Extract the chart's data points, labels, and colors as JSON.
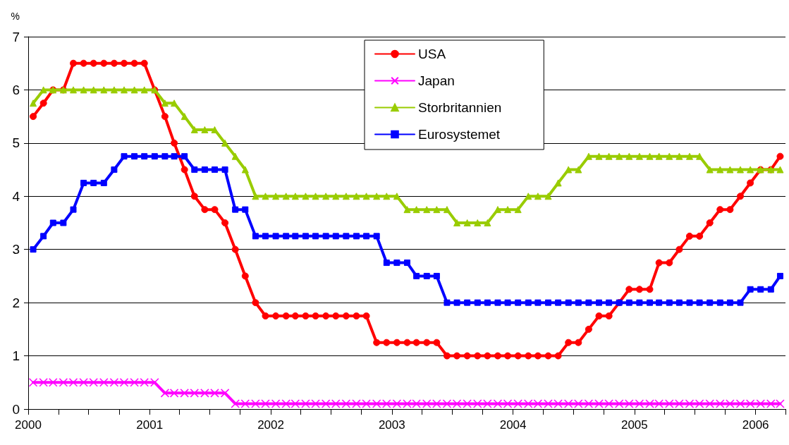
{
  "chart_data": {
    "type": "line",
    "ylabel": "%",
    "x": [
      "2000-01-16",
      "2000-02-16",
      "2000-03-16",
      "2000-04-16",
      "2000-05-16",
      "2000-06-16",
      "2000-07-16",
      "2000-08-16",
      "2000-09-16",
      "2000-10-16",
      "2000-11-16",
      "2000-12-16",
      "2001-01-16",
      "2001-02-16",
      "2001-03-16",
      "2001-04-16",
      "2001-05-16",
      "2001-06-16",
      "2001-07-16",
      "2001-08-16",
      "2001-09-16",
      "2001-10-16",
      "2001-11-16",
      "2001-12-16",
      "2002-01-16",
      "2002-02-16",
      "2002-03-16",
      "2002-04-16",
      "2002-05-16",
      "2002-06-16",
      "2002-07-16",
      "2002-08-16",
      "2002-09-16",
      "2002-10-16",
      "2002-11-16",
      "2002-12-16",
      "2003-01-16",
      "2003-02-16",
      "2003-03-16",
      "2003-04-16",
      "2003-05-16",
      "2003-06-16",
      "2003-07-16",
      "2003-08-16",
      "2003-09-16",
      "2003-10-16",
      "2003-11-16",
      "2003-12-16",
      "2004-01-16",
      "2004-02-16",
      "2004-03-16",
      "2004-04-16",
      "2004-05-16",
      "2004-06-16",
      "2004-07-16",
      "2004-08-16",
      "2004-09-16",
      "2004-10-16",
      "2004-11-16",
      "2004-12-16",
      "2005-01-16",
      "2005-02-16",
      "2005-03-16",
      "2005-04-16",
      "2005-05-16",
      "2005-06-16",
      "2005-07-16",
      "2005-08-16",
      "2005-09-16",
      "2005-10-16",
      "2005-11-16",
      "2005-12-16",
      "2006-01-16",
      "2006-02-16",
      "2006-03-16"
    ],
    "series": [
      {
        "name": "USA",
        "color": "#ff0000",
        "marker": "circle",
        "values": [
          5.5,
          5.75,
          6,
          6,
          6.5,
          6.5,
          6.5,
          6.5,
          6.5,
          6.5,
          6.5,
          6.5,
          6,
          5.5,
          5,
          4.5,
          4,
          3.75,
          3.75,
          3.5,
          3,
          2.5,
          2,
          1.75,
          1.75,
          1.75,
          1.75,
          1.75,
          1.75,
          1.75,
          1.75,
          1.75,
          1.75,
          1.75,
          1.25,
          1.25,
          1.25,
          1.25,
          1.25,
          1.25,
          1.25,
          1,
          1,
          1,
          1,
          1,
          1,
          1,
          1,
          1,
          1,
          1,
          1,
          1.25,
          1.25,
          1.5,
          1.75,
          1.75,
          2,
          2.25,
          2.25,
          2.25,
          2.75,
          2.75,
          3,
          3.25,
          3.25,
          3.5,
          3.75,
          3.75,
          4,
          4.25,
          4.5,
          4.5,
          4.75
        ]
      },
      {
        "name": "Japan",
        "color": "#ff00ff",
        "marker": "cross",
        "values": [
          0.5,
          0.5,
          0.5,
          0.5,
          0.5,
          0.5,
          0.5,
          0.5,
          0.5,
          0.5,
          0.5,
          0.5,
          0.5,
          0.3,
          0.3,
          0.3,
          0.3,
          0.3,
          0.3,
          0.3,
          0.1,
          0.1,
          0.1,
          0.1,
          0.1,
          0.1,
          0.1,
          0.1,
          0.1,
          0.1,
          0.1,
          0.1,
          0.1,
          0.1,
          0.1,
          0.1,
          0.1,
          0.1,
          0.1,
          0.1,
          0.1,
          0.1,
          0.1,
          0.1,
          0.1,
          0.1,
          0.1,
          0.1,
          0.1,
          0.1,
          0.1,
          0.1,
          0.1,
          0.1,
          0.1,
          0.1,
          0.1,
          0.1,
          0.1,
          0.1,
          0.1,
          0.1,
          0.1,
          0.1,
          0.1,
          0.1,
          0.1,
          0.1,
          0.1,
          0.1,
          0.1,
          0.1,
          0.1,
          0.1,
          0.1
        ]
      },
      {
        "name": "Storbritannien",
        "color": "#99cc00",
        "marker": "triangle",
        "values": [
          5.75,
          6,
          6,
          6,
          6,
          6,
          6,
          6,
          6,
          6,
          6,
          6,
          6,
          5.75,
          5.75,
          5.5,
          5.25,
          5.25,
          5.25,
          5,
          4.75,
          4.5,
          4,
          4,
          4,
          4,
          4,
          4,
          4,
          4,
          4,
          4,
          4,
          4,
          4,
          4,
          4,
          3.75,
          3.75,
          3.75,
          3.75,
          3.75,
          3.5,
          3.5,
          3.5,
          3.5,
          3.75,
          3.75,
          3.75,
          4,
          4,
          4,
          4.25,
          4.5,
          4.5,
          4.75,
          4.75,
          4.75,
          4.75,
          4.75,
          4.75,
          4.75,
          4.75,
          4.75,
          4.75,
          4.75,
          4.75,
          4.5,
          4.5,
          4.5,
          4.5,
          4.5,
          4.5,
          4.5,
          4.5
        ]
      },
      {
        "name": "Eurosystemet",
        "color": "#0000ff",
        "marker": "square",
        "values": [
          3,
          3.25,
          3.5,
          3.5,
          3.75,
          4.25,
          4.25,
          4.25,
          4.5,
          4.75,
          4.75,
          4.75,
          4.75,
          4.75,
          4.75,
          4.75,
          4.5,
          4.5,
          4.5,
          4.5,
          3.75,
          3.75,
          3.25,
          3.25,
          3.25,
          3.25,
          3.25,
          3.25,
          3.25,
          3.25,
          3.25,
          3.25,
          3.25,
          3.25,
          3.25,
          2.75,
          2.75,
          2.75,
          2.5,
          2.5,
          2.5,
          2,
          2,
          2,
          2,
          2,
          2,
          2,
          2,
          2,
          2,
          2,
          2,
          2,
          2,
          2,
          2,
          2,
          2,
          2,
          2,
          2,
          2,
          2,
          2,
          2,
          2,
          2,
          2,
          2,
          2,
          2.25,
          2.25,
          2.25,
          2.5
        ]
      }
    ],
    "xlim": [
      "2000-01-01",
      "2006-04-01"
    ],
    "xticks": [
      "2000",
      {
        "value": "2000-04-01",
        "label": null
      },
      {
        "value": "2000-07-01",
        "label": null
      },
      {
        "value": "2000-10-01",
        "label": null
      },
      "2001",
      {
        "value": "2001-04-01",
        "label": null
      },
      {
        "value": "2001-07-01",
        "label": null
      },
      {
        "value": "2001-10-01",
        "label": null
      },
      "2002",
      {
        "value": "2002-04-01",
        "label": null
      },
      {
        "value": "2002-07-01",
        "label": null
      },
      {
        "value": "2002-10-01",
        "label": null
      },
      "2003",
      {
        "value": "2003-04-01",
        "label": null
      },
      {
        "value": "2003-07-01",
        "label": null
      },
      {
        "value": "2003-10-01",
        "label": null
      },
      "2004",
      {
        "value": "2004-04-01",
        "label": null
      },
      {
        "value": "2004-07-01",
        "label": null
      },
      {
        "value": "2004-10-01",
        "label": null
      },
      "2005",
      {
        "value": "2005-04-01",
        "label": null
      },
      {
        "value": "2005-07-01",
        "label": null
      },
      {
        "value": "2005-10-01",
        "label": null
      },
      "2006",
      {
        "value": "2006-04-01",
        "label": null
      }
    ],
    "ylim": [
      0,
      7
    ],
    "yticks": [
      0,
      1,
      2,
      3,
      4,
      5,
      6,
      7
    ],
    "grid": "y",
    "legend": "top",
    "line_style": "solid"
  }
}
